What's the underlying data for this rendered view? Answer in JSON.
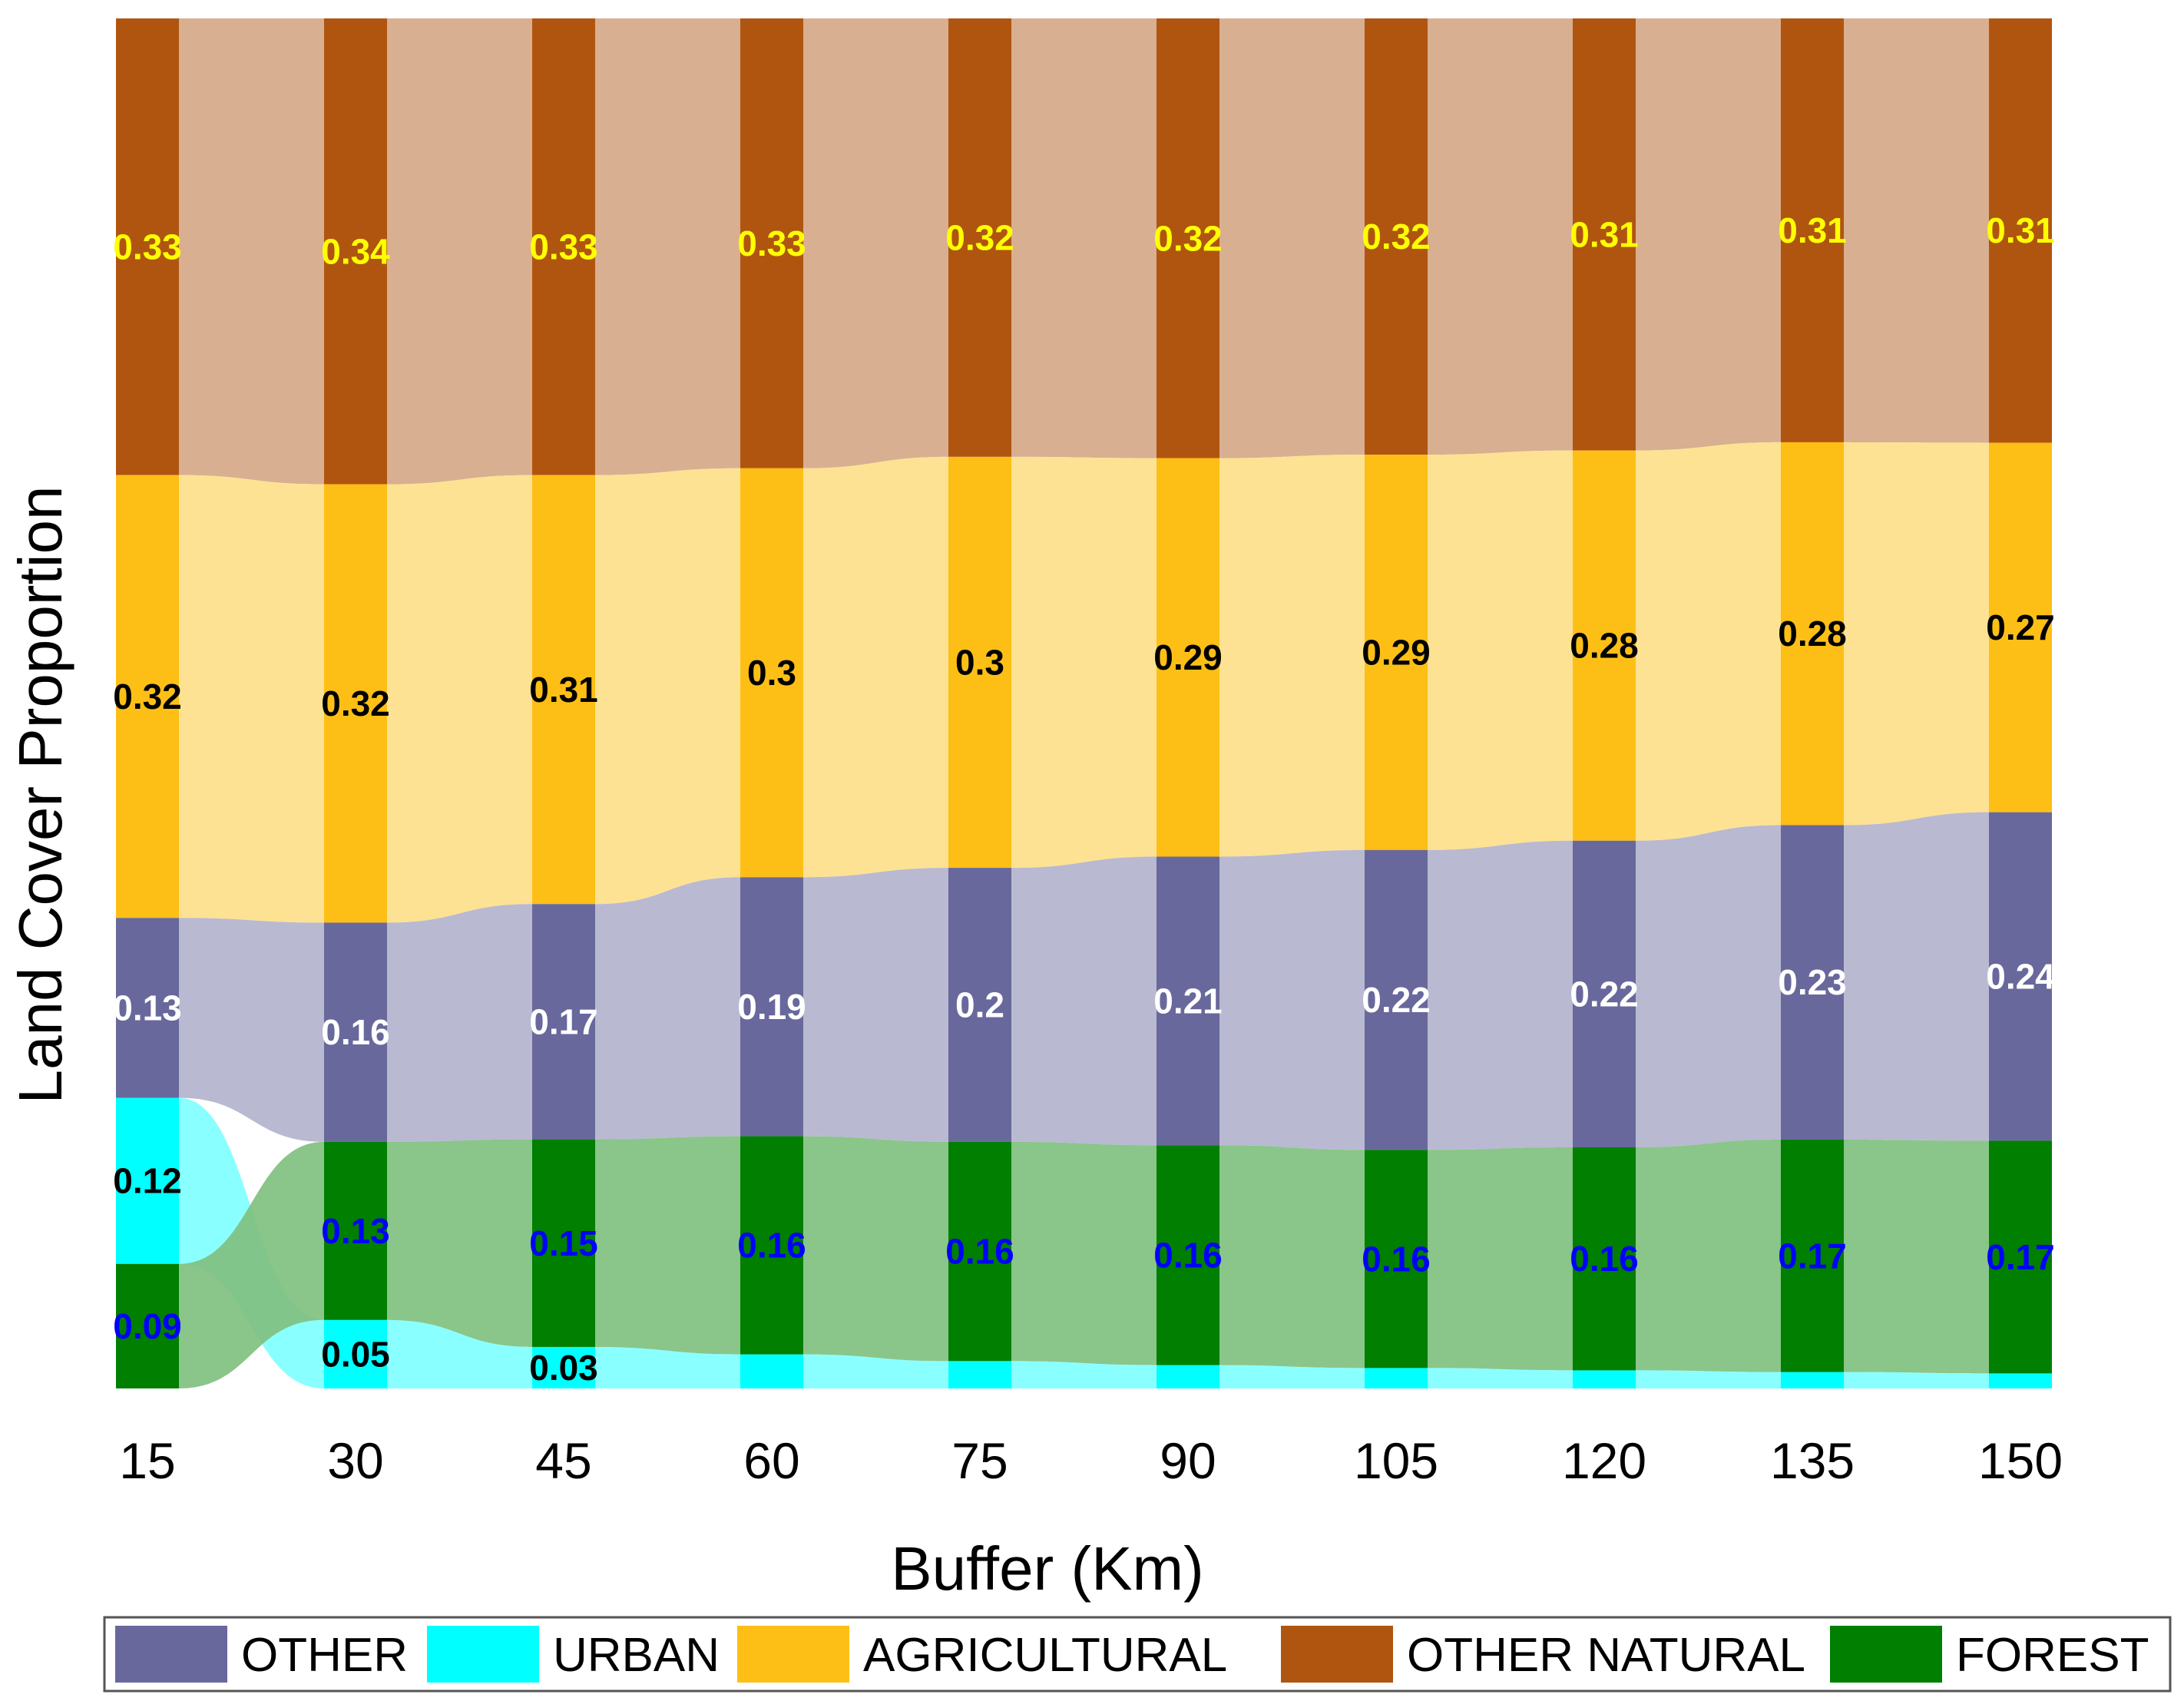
{
  "chart_data": {
    "type": "alluvial",
    "xlabel": "Buffer (Km)",
    "ylabel": "Land Cover Proportion",
    "categories": [
      "15",
      "30",
      "45",
      "60",
      "75",
      "90",
      "105",
      "120",
      "135",
      "150"
    ],
    "stack_order_bottom_to_top_at_15": [
      "FOREST",
      "URBAN",
      "OTHER",
      "AGRICULTURAL",
      "OTHER NATURAL"
    ],
    "stack_order_bottom_to_top_after_15": [
      "URBAN",
      "FOREST",
      "OTHER",
      "AGRICULTURAL",
      "OTHER NATURAL"
    ],
    "series": [
      {
        "name": "OTHER NATURAL",
        "color": "#B05510",
        "ribbon_color": "#D5A888",
        "label_color": "#FFFF00",
        "values": [
          0.33,
          0.34,
          0.33,
          0.33,
          0.32,
          0.32,
          0.32,
          0.31,
          0.31,
          0.31
        ],
        "labels": [
          "0.33",
          "0.34",
          "0.33",
          "0.33",
          "0.32",
          "0.32",
          "0.32",
          "0.31",
          "0.31",
          "0.31"
        ]
      },
      {
        "name": "AGRICULTURAL",
        "color": "#FDBF16",
        "ribbon_color": "#FDDF8A",
        "label_color": "#000000",
        "values": [
          0.32,
          0.32,
          0.31,
          0.3,
          0.3,
          0.29,
          0.29,
          0.28,
          0.28,
          0.27
        ],
        "labels": [
          "0.32",
          "0.32",
          "0.31",
          "0.3",
          "0.3",
          "0.29",
          "0.29",
          "0.28",
          "0.28",
          "0.27"
        ]
      },
      {
        "name": "OTHER",
        "color": "#69689C",
        "ribbon_color": "#B3B3CD",
        "label_color": "#FFFFFF",
        "values": [
          0.13,
          0.16,
          0.17,
          0.19,
          0.2,
          0.21,
          0.22,
          0.22,
          0.23,
          0.24
        ],
        "labels": [
          "0.13",
          "0.16",
          "0.17",
          "0.19",
          "0.2",
          "0.21",
          "0.22",
          "0.22",
          "0.23",
          "0.24"
        ]
      },
      {
        "name": "URBAN",
        "color": "#00FFFF",
        "ribbon_color": "#80FFFF",
        "label_color": "#000000",
        "values": [
          0.12,
          0.05,
          0.03,
          0.025,
          0.02,
          0.017,
          0.015,
          0.013,
          0.012,
          0.011
        ],
        "labels": [
          "0.12",
          "0.05",
          "0.03",
          "",
          "",
          "",
          "",
          "",
          "",
          ""
        ]
      },
      {
        "name": "FOREST",
        "color": "#007F00",
        "ribbon_color": "#80C080",
        "label_color": "#0000FF",
        "values": [
          0.09,
          0.13,
          0.15,
          0.16,
          0.16,
          0.16,
          0.16,
          0.16,
          0.17,
          0.17
        ],
        "labels": [
          "0.09",
          "0.13",
          "0.15",
          "0.16",
          "0.16",
          "0.16",
          "0.16",
          "0.16",
          "0.17",
          "0.17"
        ]
      }
    ],
    "legend": {
      "position": "bottom",
      "entries": [
        {
          "label": "OTHER",
          "color": "#69689C"
        },
        {
          "label": "URBAN",
          "color": "#00FFFF"
        },
        {
          "label": "AGRICULTURAL",
          "color": "#FDBF16"
        },
        {
          "label": "OTHER NATURAL",
          "color": "#B05510"
        },
        {
          "label": "FOREST",
          "color": "#007F00"
        }
      ]
    }
  }
}
